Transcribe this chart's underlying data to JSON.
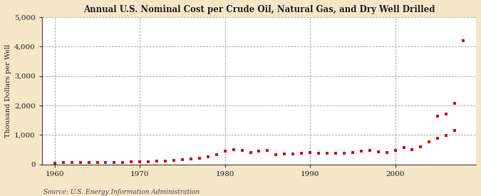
{
  "title": "Annual U.S. Nominal Cost per Crude Oil, Natural Gas, and Dry Well Drilled",
  "ylabel": "Thousand Dollars per Well",
  "source": "Source: U.S. Energy Information Administration",
  "background_color": "#f5e6c8",
  "plot_bg_color": "#ffffff",
  "marker_color": "#cc1111",
  "xlim": [
    1958.5,
    2009.5
  ],
  "ylim": [
    0,
    5000
  ],
  "yticks": [
    0,
    1000,
    2000,
    3000,
    4000,
    5000
  ],
  "xticks": [
    1960,
    1970,
    1980,
    1990,
    2000
  ],
  "years": [
    1960,
    1961,
    1962,
    1963,
    1964,
    1965,
    1966,
    1967,
    1968,
    1969,
    1970,
    1971,
    1972,
    1973,
    1974,
    1975,
    1976,
    1977,
    1978,
    1979,
    1980,
    1981,
    1982,
    1983,
    1984,
    1985,
    1986,
    1987,
    1988,
    1989,
    1990,
    1991,
    1992,
    1993,
    1994,
    1995,
    1996,
    1997,
    1998,
    1999,
    2000,
    2001,
    2002,
    2003,
    2004,
    2005,
    2006,
    2007,
    2008
  ],
  "values": [
    55,
    58,
    60,
    62,
    65,
    67,
    70,
    73,
    78,
    85,
    92,
    98,
    105,
    115,
    140,
    165,
    185,
    210,
    250,
    325,
    450,
    510,
    470,
    395,
    460,
    480,
    340,
    350,
    355,
    375,
    405,
    385,
    375,
    370,
    380,
    405,
    445,
    485,
    440,
    415,
    480,
    575,
    510,
    590,
    760,
    880,
    980,
    1160,
    4200
  ],
  "extra_years": [
    2005,
    2006,
    2007
  ],
  "extra_values": [
    1640,
    1710,
    2080
  ]
}
